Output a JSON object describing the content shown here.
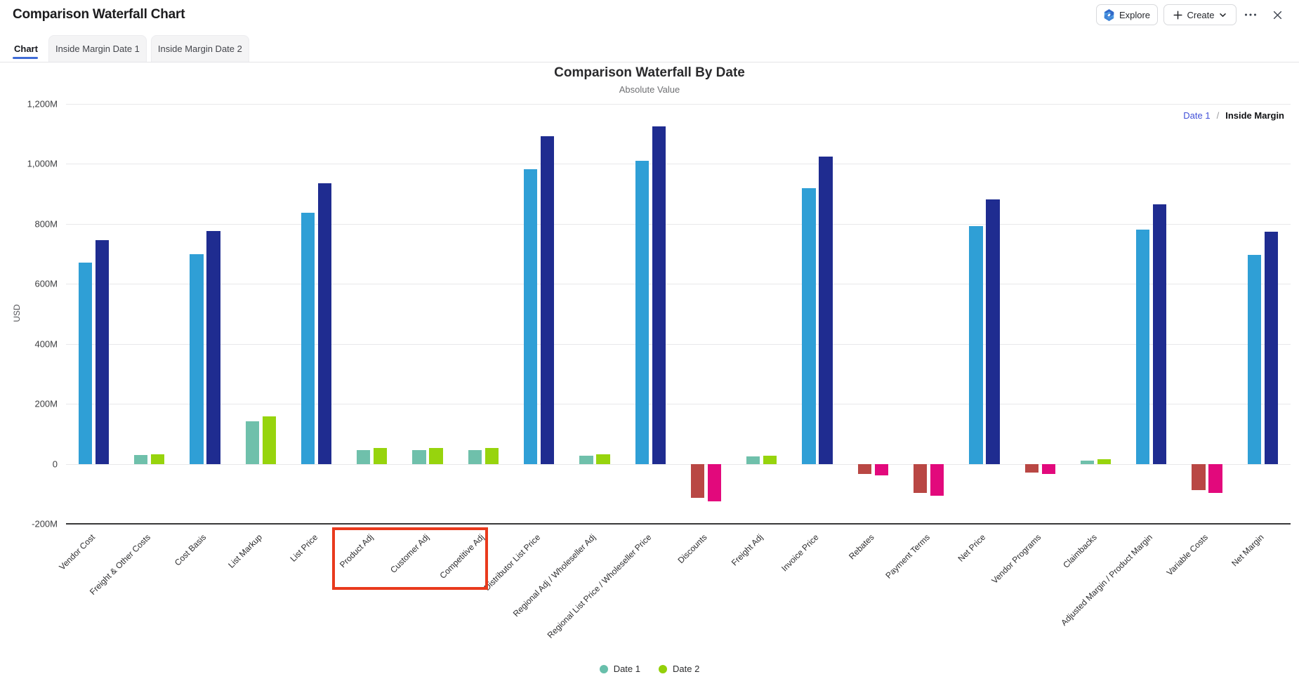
{
  "header": {
    "title": "Comparison Waterfall Chart",
    "explore_label": "Explore",
    "create_label": "Create",
    "more_label": "more options",
    "close_label": "close"
  },
  "tabs": [
    {
      "label": "Chart",
      "active": true
    },
    {
      "label": "Inside Margin Date 1",
      "active": false
    },
    {
      "label": "Inside Margin Date 2",
      "active": false
    }
  ],
  "chart": {
    "title": "Comparison Waterfall By Date",
    "subtitle": "Absolute Value",
    "breadcrumb": {
      "level1": "Date 1",
      "separator": "/",
      "level2": "Inside Margin"
    }
  },
  "chart_data": {
    "type": "bar",
    "title": "Comparison Waterfall By Date",
    "subtitle": "Absolute Value",
    "xlabel": "",
    "ylabel": "USD",
    "unit": "M",
    "ylim": [
      -200,
      1200
    ],
    "ytick_step": 200,
    "yticks": [
      {
        "value": -200,
        "label": "-200M"
      },
      {
        "value": 0,
        "label": "0"
      },
      {
        "value": 200,
        "label": "200M"
      },
      {
        "value": 400,
        "label": "400M"
      },
      {
        "value": 600,
        "label": "600M"
      },
      {
        "value": 800,
        "label": "800M"
      },
      {
        "value": 1000,
        "label": "1,000M"
      },
      {
        "value": 1200,
        "label": "1,200M"
      }
    ],
    "grid": true,
    "legend_position": "bottom",
    "categories": [
      "Vendor Cost",
      "Freight & Other Costs",
      "Cost Basis",
      "List Markup",
      "List Price",
      "Product Adj",
      "Customer Adj",
      "Competitive Adj",
      "Distributor List Price",
      "Regional Adj / Wholeseller Adj",
      "Regional List Price / Wholeseller Price",
      "Discounts",
      "Freight Adj",
      "Invoice Price",
      "Rebates",
      "Payment Terms",
      "Net Price",
      "Vendor Programs",
      "Claimbacks",
      "Adjusted Margin / Product Margin",
      "Variable Costs",
      "Net Margin"
    ],
    "bar_kinds": [
      "total",
      "increase",
      "total",
      "increase",
      "total",
      "increase",
      "increase",
      "increase",
      "total",
      "increase",
      "total",
      "decrease",
      "increase",
      "total",
      "decrease",
      "decrease",
      "total",
      "decrease",
      "increase",
      "total",
      "decrease",
      "total"
    ],
    "series": [
      {
        "name": "Date 1",
        "values": [
          671,
          30,
          700,
          142,
          838,
          47,
          47,
          47,
          983,
          29,
          1010,
          -112,
          25,
          919,
          -34,
          -95,
          792,
          -29,
          12,
          780,
          -87,
          698
        ],
        "colors": {
          "total": "#2f9fd6",
          "increase": "#6fc0ab",
          "decrease": "#b94744"
        }
      },
      {
        "name": "Date 2",
        "values": [
          745,
          33,
          777,
          159,
          935,
          53,
          53,
          53,
          1092,
          32,
          1126,
          -124,
          27,
          1025,
          -38,
          -105,
          882,
          -33,
          15,
          866,
          -95,
          773
        ],
        "colors": {
          "total": "#1f2c90",
          "increase": "#97d40d",
          "decrease": "#e2097c"
        }
      }
    ],
    "legend": [
      {
        "name": "Date 1",
        "color": "#68bfab"
      },
      {
        "name": "Date 2",
        "color": "#93d009"
      }
    ],
    "annotation": {
      "type": "box",
      "color": "#e93a1d",
      "from_category": "Product Adj",
      "to_category": "Competitive Adj"
    }
  }
}
